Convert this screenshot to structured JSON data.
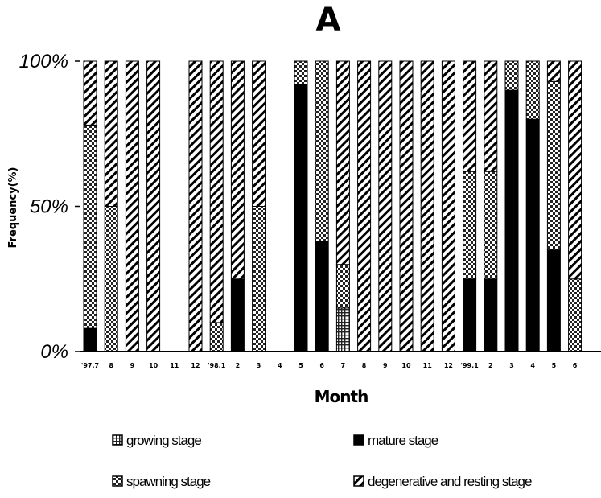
{
  "chart_data": {
    "type": "bar",
    "stacked": "percent",
    "title": "A",
    "xlabel": "Month",
    "ylabel": "Frequency(%)",
    "ylim": [
      0,
      100
    ],
    "yticks": [
      "0%",
      "50%",
      "100%"
    ],
    "categories": [
      "'97.7",
      "8",
      "9",
      "10",
      "11",
      "12",
      "'98.1",
      "2",
      "3",
      "4",
      "5",
      "6",
      "7",
      "8",
      "9",
      "10",
      "11",
      "12",
      "'99.1",
      "2",
      "3",
      "4",
      "5",
      "6"
    ],
    "series": [
      {
        "name": "growing stage",
        "color": "#222222",
        "pattern": "grid",
        "values": [
          0,
          0,
          0,
          0,
          0,
          0,
          0,
          0,
          0,
          0,
          0,
          0,
          15,
          0,
          0,
          0,
          0,
          0,
          0,
          0,
          0,
          0,
          0,
          0
        ]
      },
      {
        "name": "mature stage",
        "color": "#000000",
        "pattern": "solid",
        "values": [
          8,
          0,
          0,
          0,
          0,
          0,
          0,
          25,
          0,
          0,
          92,
          38,
          0,
          0,
          0,
          0,
          0,
          0,
          25,
          25,
          90,
          80,
          35,
          0
        ]
      },
      {
        "name": "spawning stage",
        "color": "#111111",
        "pattern": "checker",
        "values": [
          70,
          50,
          0,
          0,
          0,
          0,
          10,
          0,
          50,
          0,
          8,
          62,
          15,
          0,
          0,
          0,
          0,
          0,
          37,
          37,
          10,
          20,
          58,
          25
        ]
      },
      {
        "name": "degenerative and resting stage",
        "color": "#000000",
        "pattern": "diagonal",
        "values": [
          22,
          50,
          100,
          100,
          0,
          100,
          90,
          75,
          50,
          0,
          0,
          0,
          70,
          100,
          100,
          100,
          100,
          100,
          38,
          38,
          0,
          0,
          7,
          75
        ]
      }
    ],
    "grid": false,
    "legend_position": "bottom"
  }
}
